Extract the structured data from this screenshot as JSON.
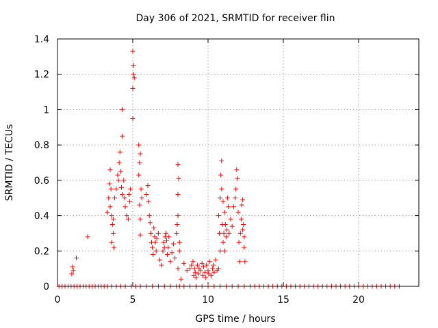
{
  "chart_data": {
    "type": "scatter",
    "title": "Day 306 of 2021, SRMTID for receiver flin",
    "xlabel": "GPS time / hours",
    "ylabel": "SRMTID / TECUs",
    "xlim": [
      0,
      24
    ],
    "ylim": [
      0,
      1.4
    ],
    "xticks": [
      0,
      5,
      10,
      15,
      20
    ],
    "yticks": [
      0,
      0.2,
      0.4,
      0.6,
      0.8,
      1,
      1.2,
      1.4
    ],
    "grid": true,
    "marker": "+",
    "color": "#ff0000",
    "series": [
      {
        "name": "SRMTID",
        "points": [
          [
            0.1,
            0
          ],
          [
            0.3,
            0
          ],
          [
            0.5,
            0
          ],
          [
            0.7,
            0
          ],
          [
            0.9,
            0
          ],
          [
            1.1,
            0
          ],
          [
            1.3,
            0
          ],
          [
            1.5,
            0
          ],
          [
            1.7,
            0
          ],
          [
            1.9,
            0
          ],
          [
            2.1,
            0
          ],
          [
            2.3,
            0
          ],
          [
            2.5,
            0
          ],
          [
            2.7,
            0
          ],
          [
            2.9,
            0
          ],
          [
            3.1,
            0
          ],
          [
            3.3,
            0
          ],
          [
            3.6,
            0
          ],
          [
            3.9,
            0
          ],
          [
            4.2,
            0
          ],
          [
            4.5,
            0
          ],
          [
            4.9,
            0
          ],
          [
            5.2,
            0
          ],
          [
            5.5,
            0
          ],
          [
            5.9,
            0
          ],
          [
            6.3,
            0
          ],
          [
            6.7,
            0
          ],
          [
            7.1,
            0
          ],
          [
            7.5,
            0
          ],
          [
            7.9,
            0
          ],
          [
            8.1,
            0
          ],
          [
            8.4,
            0
          ],
          [
            8.8,
            0
          ],
          [
            9.2,
            0
          ],
          [
            9.6,
            0
          ],
          [
            10.0,
            0
          ],
          [
            10.4,
            0
          ],
          [
            10.8,
            0
          ],
          [
            11.2,
            0
          ],
          [
            11.6,
            0
          ],
          [
            12.0,
            0
          ],
          [
            12.4,
            0
          ],
          [
            12.8,
            0
          ],
          [
            13.1,
            0
          ],
          [
            13.4,
            0
          ],
          [
            13.7,
            0
          ],
          [
            14.0,
            0
          ],
          [
            14.3,
            0
          ],
          [
            14.6,
            0
          ],
          [
            14.9,
            0
          ],
          [
            15.2,
            0
          ],
          [
            15.5,
            0
          ],
          [
            15.8,
            0
          ],
          [
            16.1,
            0
          ],
          [
            16.4,
            0
          ],
          [
            16.7,
            0
          ],
          [
            17.0,
            0
          ],
          [
            17.3,
            0
          ],
          [
            17.6,
            0
          ],
          [
            17.9,
            0
          ],
          [
            18.2,
            0
          ],
          [
            18.5,
            0
          ],
          [
            18.8,
            0
          ],
          [
            19.1,
            0
          ],
          [
            19.4,
            0
          ],
          [
            19.7,
            0
          ],
          [
            20.0,
            0
          ],
          [
            20.3,
            0
          ],
          [
            20.6,
            0
          ],
          [
            20.9,
            0
          ],
          [
            21.2,
            0
          ],
          [
            21.5,
            0
          ],
          [
            21.8,
            0
          ],
          [
            22.1,
            0
          ],
          [
            22.4,
            0
          ],
          [
            22.7,
            0
          ],
          [
            0.95,
            0.07
          ],
          [
            1.0,
            0.11
          ],
          [
            1.05,
            0.09
          ],
          [
            1.25,
            0.16
          ],
          [
            2.0,
            0.28
          ],
          [
            3.3,
            0.42
          ],
          [
            3.4,
            0.5
          ],
          [
            3.45,
            0.58
          ],
          [
            3.5,
            0.66
          ],
          [
            3.55,
            0.55
          ],
          [
            3.6,
            0.4
          ],
          [
            3.65,
            0.35
          ],
          [
            3.7,
            0.3
          ],
          [
            3.6,
            0.25
          ],
          [
            3.75,
            0.22
          ],
          [
            3.7,
            0.38
          ],
          [
            3.5,
            0.45
          ],
          [
            3.8,
            0.5
          ],
          [
            3.9,
            0.55
          ],
          [
            4.0,
            0.63
          ],
          [
            4.05,
            0.6
          ],
          [
            4.1,
            0.7
          ],
          [
            4.15,
            0.76
          ],
          [
            4.2,
            0.65
          ],
          [
            4.3,
            1.0
          ],
          [
            4.3,
            0.85
          ],
          [
            4.25,
            0.56
          ],
          [
            4.3,
            0.52
          ],
          [
            4.4,
            0.6
          ],
          [
            4.45,
            0.5
          ],
          [
            4.5,
            0.45
          ],
          [
            4.6,
            0.4
          ],
          [
            4.7,
            0.38
          ],
          [
            4.75,
            0.52
          ],
          [
            4.8,
            0.48
          ],
          [
            4.85,
            0.55
          ],
          [
            5.0,
            0.95
          ],
          [
            5.0,
            1.12
          ],
          [
            5.05,
            1.2
          ],
          [
            5.05,
            1.25
          ],
          [
            5.0,
            1.33
          ],
          [
            5.1,
            1.18
          ],
          [
            5.4,
            0.8
          ],
          [
            5.45,
            0.7
          ],
          [
            5.5,
            0.75
          ],
          [
            5.4,
            0.63
          ],
          [
            5.55,
            0.55
          ],
          [
            5.6,
            0.5
          ],
          [
            5.45,
            0.46
          ],
          [
            5.5,
            0.38
          ],
          [
            5.5,
            0.29
          ],
          [
            5.9,
            0.52
          ],
          [
            6.0,
            0.57
          ],
          [
            6.05,
            0.48
          ],
          [
            6.1,
            0.4
          ],
          [
            6.15,
            0.36
          ],
          [
            6.2,
            0.3
          ],
          [
            6.25,
            0.25
          ],
          [
            6.3,
            0.22
          ],
          [
            6.35,
            0.18
          ],
          [
            6.4,
            0.33
          ],
          [
            6.45,
            0.28
          ],
          [
            6.5,
            0.25
          ],
          [
            6.55,
            0.2
          ],
          [
            6.6,
            0.27
          ],
          [
            6.7,
            0.3
          ],
          [
            6.8,
            0.15
          ],
          [
            6.9,
            0.12
          ],
          [
            7.0,
            0.2
          ],
          [
            7.05,
            0.25
          ],
          [
            7.1,
            0.22
          ],
          [
            7.15,
            0.28
          ],
          [
            7.2,
            0.3
          ],
          [
            7.25,
            0.26
          ],
          [
            7.3,
            0.18
          ],
          [
            7.35,
            0.22
          ],
          [
            7.4,
            0.28
          ],
          [
            7.5,
            0.14
          ],
          [
            7.6,
            0.19
          ],
          [
            7.7,
            0.24
          ],
          [
            7.8,
            0.16
          ],
          [
            7.9,
            0.3
          ],
          [
            7.95,
            0.35
          ],
          [
            8.0,
            0.4
          ],
          [
            8.0,
            0.52
          ],
          [
            8.05,
            0.61
          ],
          [
            8.0,
            0.69
          ],
          [
            8.1,
            0.2
          ],
          [
            8.1,
            0.25
          ],
          [
            8.0,
            0.1
          ],
          [
            8.2,
            0.04
          ],
          [
            8.4,
            0.13
          ],
          [
            8.6,
            0.09
          ],
          [
            8.8,
            0.1
          ],
          [
            8.9,
            0.12
          ],
          [
            9.0,
            0.14
          ],
          [
            9.05,
            0.06
          ],
          [
            9.1,
            0.1
          ],
          [
            9.15,
            0.08
          ],
          [
            9.2,
            0.05
          ],
          [
            9.3,
            0.12
          ],
          [
            9.35,
            0.07
          ],
          [
            9.4,
            0.1
          ],
          [
            9.5,
            0.09
          ],
          [
            9.6,
            0.13
          ],
          [
            9.65,
            0.06
          ],
          [
            9.7,
            0.11
          ],
          [
            9.8,
            0.08
          ],
          [
            9.85,
            0.05
          ],
          [
            9.9,
            0.12
          ],
          [
            10.0,
            0.09
          ],
          [
            10.05,
            0.07
          ],
          [
            10.1,
            0.14
          ],
          [
            10.2,
            0.06
          ],
          [
            10.3,
            0.1
          ],
          [
            10.35,
            0.12
          ],
          [
            10.4,
            0.08
          ],
          [
            10.5,
            0.15
          ],
          [
            10.6,
            0.09
          ],
          [
            10.7,
            0.1
          ],
          [
            10.8,
            0.2
          ],
          [
            10.7,
            0.4
          ],
          [
            10.75,
            0.3
          ],
          [
            10.8,
            0.5
          ],
          [
            10.85,
            0.63
          ],
          [
            10.9,
            0.55
          ],
          [
            10.9,
            0.71
          ],
          [
            10.95,
            0.35
          ],
          [
            11.0,
            0.25
          ],
          [
            11.0,
            0.48
          ],
          [
            11.05,
            0.3
          ],
          [
            11.1,
            0.42
          ],
          [
            11.1,
            0.2
          ],
          [
            11.15,
            0.35
          ],
          [
            11.2,
            0.28
          ],
          [
            11.25,
            0.32
          ],
          [
            11.3,
            0.5
          ],
          [
            11.35,
            0.45
          ],
          [
            11.4,
            0.3
          ],
          [
            11.5,
            0.38
          ],
          [
            11.6,
            0.34
          ],
          [
            11.7,
            0.45
          ],
          [
            11.8,
            0.5
          ],
          [
            11.85,
            0.55
          ],
          [
            11.9,
            0.66
          ],
          [
            11.95,
            0.61
          ],
          [
            12.0,
            0.42
          ],
          [
            12.05,
            0.25
          ],
          [
            12.1,
            0.14
          ],
          [
            12.15,
            0.3
          ],
          [
            12.2,
            0.38
          ],
          [
            12.25,
            0.46
          ],
          [
            12.3,
            0.49
          ],
          [
            12.35,
            0.35
          ],
          [
            12.4,
            0.28
          ],
          [
            12.4,
            0.22
          ],
          [
            12.45,
            0.14
          ],
          [
            12.3,
            0.32
          ]
        ]
      }
    ]
  }
}
